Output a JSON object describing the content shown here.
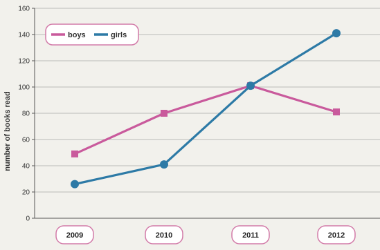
{
  "chart_data": {
    "type": "line",
    "categories": [
      "2009",
      "2010",
      "2011",
      "2012"
    ],
    "series": [
      {
        "name": "boys",
        "values": [
          49,
          80,
          101,
          81
        ],
        "color": "#c95a9c",
        "marker": "square"
      },
      {
        "name": "girls",
        "values": [
          26,
          41,
          101,
          141
        ],
        "color": "#2d7aa6",
        "marker": "circle"
      }
    ],
    "ylabel": "number of books read",
    "ylim": [
      0,
      160
    ],
    "yticks": [
      0,
      20,
      40,
      60,
      80,
      100,
      120,
      140,
      160
    ],
    "grid": true,
    "legend_position": "top-left"
  }
}
